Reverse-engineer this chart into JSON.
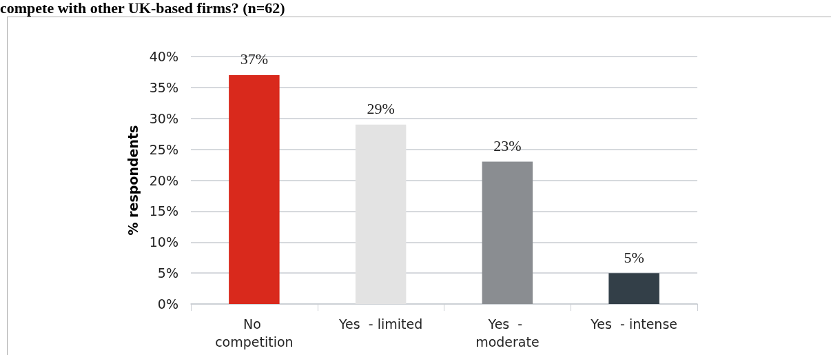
{
  "chart_data": {
    "type": "bar",
    "title": "compete with other UK-based firms? (n=62)",
    "ylabel": "% respondents",
    "categories": [
      "No competition",
      "Yes  - limited",
      "Yes  - moderate",
      "Yes  - intense"
    ],
    "values": [
      37,
      29,
      23,
      5
    ],
    "colors": [
      "#d9291c",
      "#e3e3e3",
      "#8a8d91",
      "#333f48"
    ],
    "ylim": [
      0,
      40
    ],
    "yticks": [
      {
        "value": 0,
        "label": "0%"
      },
      {
        "value": 5,
        "label": "5%"
      },
      {
        "value": 10,
        "label": "10%"
      },
      {
        "value": 15,
        "label": "15%"
      },
      {
        "value": 20,
        "label": "20%"
      },
      {
        "value": 25,
        "label": "25%"
      },
      {
        "value": 30,
        "label": "30%"
      },
      {
        "value": 35,
        "label": "35%"
      },
      {
        "value": 40,
        "label": "40%"
      }
    ],
    "value_labels": [
      "37%",
      "29%",
      "23%",
      "5%"
    ],
    "grid": "y"
  }
}
